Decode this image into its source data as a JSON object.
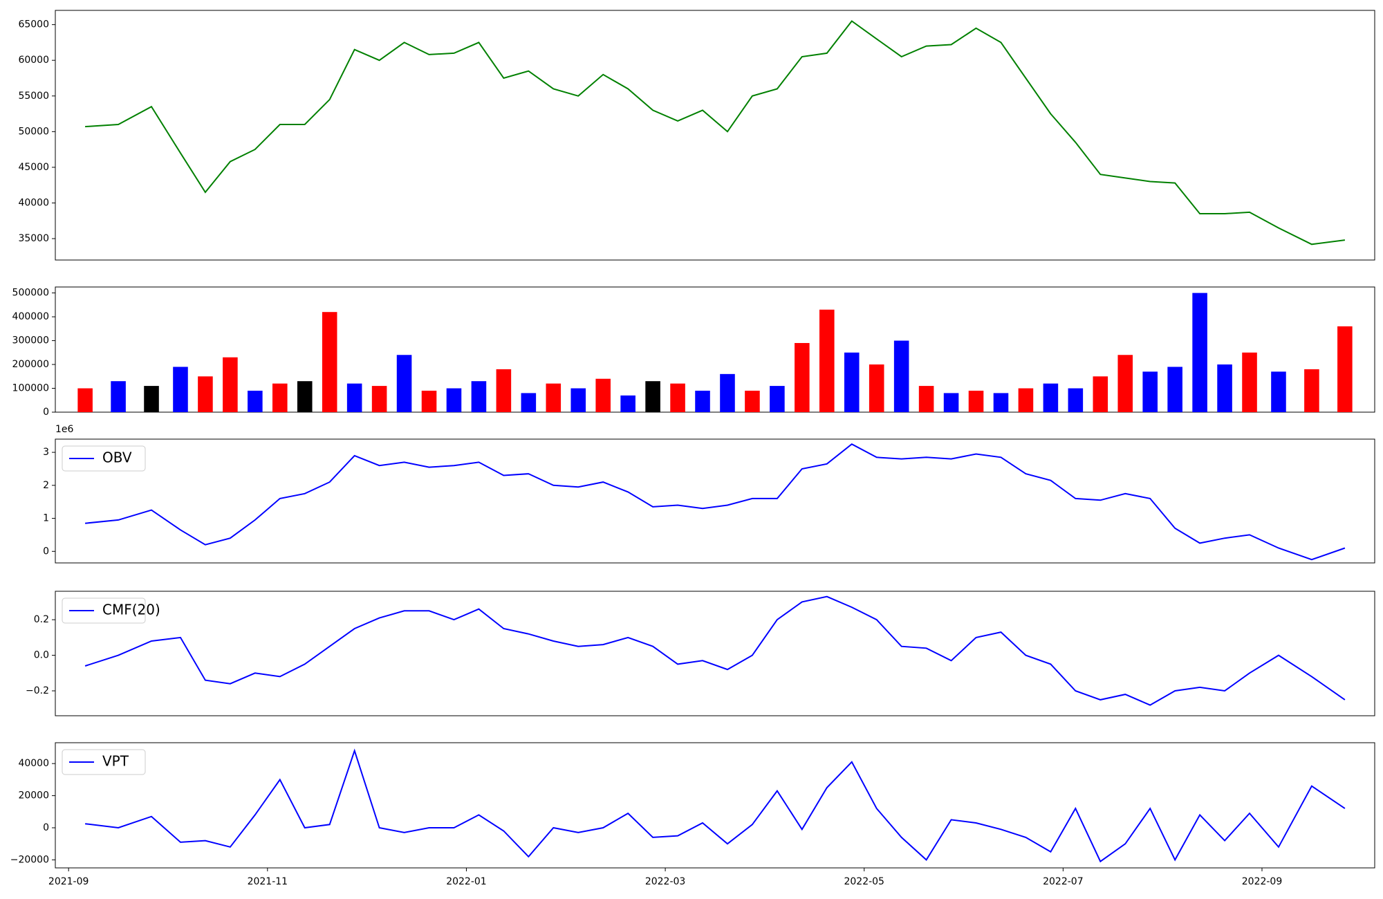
{
  "chart_data": [
    {
      "type": "line",
      "color": "#008000",
      "x": [
        "2021-09",
        "2021-09",
        "2021-09",
        "2021-10",
        "2021-10",
        "2021-10",
        "2021-10",
        "2021-11",
        "2021-11",
        "2021-11",
        "2021-11",
        "2021-12",
        "2021-12",
        "2021-12",
        "2021-12",
        "2022-01",
        "2022-01",
        "2022-01",
        "2022-01",
        "2022-02",
        "2022-02",
        "2022-02",
        "2022-02",
        "2022-03",
        "2022-03",
        "2022-03",
        "2022-03",
        "2022-04",
        "2022-04",
        "2022-04",
        "2022-04",
        "2022-05",
        "2022-05",
        "2022-05",
        "2022-05",
        "2022-06",
        "2022-06",
        "2022-06",
        "2022-06",
        "2022-07",
        "2022-07",
        "2022-07",
        "2022-07",
        "2022-08",
        "2022-08",
        "2022-08",
        "2022-08",
        "2022-09",
        "2022-09",
        "2022-09"
      ],
      "values": [
        50700,
        51000,
        53500,
        47000,
        41500,
        45800,
        47500,
        51000,
        51000,
        54500,
        61500,
        60000,
        62500,
        60800,
        61000,
        62500,
        57500,
        58500,
        56000,
        55000,
        58000,
        56000,
        53000,
        51500,
        53000,
        50000,
        55000,
        56000,
        60500,
        61000,
        65500,
        63000,
        60500,
        62000,
        62200,
        64500,
        62500,
        57500,
        52500,
        48500,
        44000,
        43500,
        43000,
        42800,
        38500,
        38500,
        38700,
        36500,
        34200,
        34800
      ],
      "ylim": [
        32000,
        67000
      ],
      "yticks": [
        35000,
        40000,
        45000,
        50000,
        55000,
        60000,
        65000
      ]
    },
    {
      "type": "bar",
      "x": [
        "2021-09",
        "2021-09",
        "2021-09",
        "2021-10",
        "2021-10",
        "2021-10",
        "2021-10",
        "2021-11",
        "2021-11",
        "2021-11",
        "2021-11",
        "2021-12",
        "2021-12",
        "2021-12",
        "2021-12",
        "2022-01",
        "2022-01",
        "2022-01",
        "2022-01",
        "2022-02",
        "2022-02",
        "2022-02",
        "2022-02",
        "2022-03",
        "2022-03",
        "2022-03",
        "2022-03",
        "2022-04",
        "2022-04",
        "2022-04",
        "2022-04",
        "2022-05",
        "2022-05",
        "2022-05",
        "2022-05",
        "2022-06",
        "2022-06",
        "2022-06",
        "2022-06",
        "2022-07",
        "2022-07",
        "2022-07",
        "2022-07",
        "2022-08",
        "2022-08",
        "2022-08",
        "2022-08",
        "2022-09",
        "2022-09",
        "2022-09"
      ],
      "values": [
        100000,
        130000,
        110000,
        190000,
        150000,
        230000,
        90000,
        120000,
        130000,
        420000,
        120000,
        110000,
        240000,
        90000,
        100000,
        130000,
        180000,
        80000,
        120000,
        100000,
        140000,
        70000,
        130000,
        120000,
        90000,
        160000,
        90000,
        110000,
        290000,
        430000,
        250000,
        200000,
        300000,
        110000,
        80000,
        90000,
        80000,
        100000,
        120000,
        100000,
        150000,
        240000,
        170000,
        190000,
        500000,
        200000,
        250000,
        170000,
        180000,
        360000
      ],
      "colors": [
        "#ff0000",
        "#0000ff",
        "#000000",
        "#0000ff",
        "#ff0000",
        "#ff0000",
        "#0000ff",
        "#ff0000",
        "#000000",
        "#ff0000",
        "#0000ff",
        "#ff0000",
        "#0000ff",
        "#ff0000",
        "#0000ff",
        "#0000ff",
        "#ff0000",
        "#0000ff",
        "#ff0000",
        "#0000ff",
        "#ff0000",
        "#0000ff",
        "#000000",
        "#ff0000",
        "#0000ff",
        "#0000ff",
        "#ff0000",
        "#0000ff",
        "#ff0000",
        "#ff0000",
        "#0000ff",
        "#ff0000",
        "#0000ff",
        "#ff0000",
        "#0000ff",
        "#ff0000",
        "#0000ff",
        "#ff0000",
        "#0000ff",
        "#0000ff",
        "#ff0000",
        "#ff0000",
        "#0000ff",
        "#0000ff",
        "#0000ff",
        "#0000ff",
        "#ff0000",
        "#0000ff",
        "#ff0000",
        "#ff0000"
      ],
      "ylim": [
        0,
        525000
      ],
      "yticks": [
        0,
        100000,
        200000,
        300000,
        400000,
        500000
      ]
    },
    {
      "type": "line",
      "legend": "upper left",
      "offset_label": "1e6",
      "x": [
        "2021-09",
        "2021-09",
        "2021-09",
        "2021-10",
        "2021-10",
        "2021-10",
        "2021-10",
        "2021-11",
        "2021-11",
        "2021-11",
        "2021-11",
        "2021-12",
        "2021-12",
        "2021-12",
        "2021-12",
        "2022-01",
        "2022-01",
        "2022-01",
        "2022-01",
        "2022-02",
        "2022-02",
        "2022-02",
        "2022-02",
        "2022-03",
        "2022-03",
        "2022-03",
        "2022-03",
        "2022-04",
        "2022-04",
        "2022-04",
        "2022-04",
        "2022-05",
        "2022-05",
        "2022-05",
        "2022-05",
        "2022-06",
        "2022-06",
        "2022-06",
        "2022-06",
        "2022-07",
        "2022-07",
        "2022-07",
        "2022-07",
        "2022-08",
        "2022-08",
        "2022-08",
        "2022-08",
        "2022-09",
        "2022-09",
        "2022-09"
      ],
      "series": [
        {
          "name": "OBV",
          "color": "#0000ff",
          "values": [
            850000,
            950000,
            1250000,
            650000,
            200000,
            400000,
            950000,
            1600000,
            1750000,
            2100000,
            2900000,
            2600000,
            2700000,
            2550000,
            2600000,
            2700000,
            2300000,
            2350000,
            2000000,
            1950000,
            2100000,
            1800000,
            1350000,
            1400000,
            1300000,
            1400000,
            1600000,
            1600000,
            2500000,
            2650000,
            3250000,
            2850000,
            2800000,
            2850000,
            2800000,
            2950000,
            2850000,
            2350000,
            2150000,
            1600000,
            1550000,
            1750000,
            1600000,
            700000,
            250000,
            400000,
            500000,
            100000,
            -250000,
            100000
          ]
        }
      ],
      "ylim": [
        -350000,
        3400000
      ],
      "yticks": [
        {
          "value": 0,
          "label": "0"
        },
        {
          "value": 1000000,
          "label": "1"
        },
        {
          "value": 2000000,
          "label": "2"
        },
        {
          "value": 3000000,
          "label": "3"
        }
      ]
    },
    {
      "type": "line",
      "legend": "upper left",
      "x": [
        "2021-09",
        "2021-09",
        "2021-09",
        "2021-10",
        "2021-10",
        "2021-10",
        "2021-10",
        "2021-11",
        "2021-11",
        "2021-11",
        "2021-11",
        "2021-12",
        "2021-12",
        "2021-12",
        "2021-12",
        "2022-01",
        "2022-01",
        "2022-01",
        "2022-01",
        "2022-02",
        "2022-02",
        "2022-02",
        "2022-02",
        "2022-03",
        "2022-03",
        "2022-03",
        "2022-03",
        "2022-04",
        "2022-04",
        "2022-04",
        "2022-04",
        "2022-05",
        "2022-05",
        "2022-05",
        "2022-05",
        "2022-06",
        "2022-06",
        "2022-06",
        "2022-06",
        "2022-07",
        "2022-07",
        "2022-07",
        "2022-07",
        "2022-08",
        "2022-08",
        "2022-08",
        "2022-08",
        "2022-09",
        "2022-09",
        "2022-09"
      ],
      "series": [
        {
          "name": "CMF(20)",
          "color": "#0000ff",
          "values": [
            -0.06,
            0.0,
            0.08,
            0.1,
            -0.14,
            -0.16,
            -0.1,
            -0.12,
            -0.05,
            0.05,
            0.15,
            0.21,
            0.25,
            0.25,
            0.2,
            0.26,
            0.15,
            0.12,
            0.08,
            0.05,
            0.06,
            0.1,
            0.05,
            -0.05,
            -0.03,
            -0.08,
            0.0,
            0.2,
            0.3,
            0.33,
            0.27,
            0.2,
            0.05,
            0.04,
            -0.03,
            0.1,
            0.13,
            0.0,
            -0.05,
            -0.2,
            -0.25,
            -0.22,
            -0.28,
            -0.2,
            -0.18,
            -0.2,
            -0.1,
            0.0,
            -0.12,
            -0.25
          ]
        }
      ],
      "ylim": [
        -0.34,
        0.36
      ],
      "yticks": [
        {
          "value": -0.2,
          "label": "−0.2"
        },
        {
          "value": 0,
          "label": "0.0"
        },
        0.2
      ]
    },
    {
      "type": "line",
      "legend": "upper left",
      "x": [
        "2021-09",
        "2021-09",
        "2021-09",
        "2021-10",
        "2021-10",
        "2021-10",
        "2021-10",
        "2021-11",
        "2021-11",
        "2021-11",
        "2021-11",
        "2021-12",
        "2021-12",
        "2021-12",
        "2021-12",
        "2022-01",
        "2022-01",
        "2022-01",
        "2022-01",
        "2022-02",
        "2022-02",
        "2022-02",
        "2022-02",
        "2022-03",
        "2022-03",
        "2022-03",
        "2022-03",
        "2022-04",
        "2022-04",
        "2022-04",
        "2022-04",
        "2022-05",
        "2022-05",
        "2022-05",
        "2022-05",
        "2022-06",
        "2022-06",
        "2022-06",
        "2022-06",
        "2022-07",
        "2022-07",
        "2022-07",
        "2022-07",
        "2022-08",
        "2022-08",
        "2022-08",
        "2022-08",
        "2022-09",
        "2022-09",
        "2022-09"
      ],
      "series": [
        {
          "name": "VPT",
          "color": "#0000ff",
          "values": [
            2500,
            0,
            7000,
            -9000,
            -8000,
            -12000,
            8000,
            30000,
            0,
            2000,
            48000,
            0,
            -3000,
            0,
            0,
            8000,
            -2000,
            -18000,
            0,
            -3000,
            0,
            9000,
            -6000,
            -5000,
            3000,
            -10000,
            2000,
            23000,
            -1000,
            25000,
            41000,
            12000,
            -6000,
            -20000,
            5000,
            3000,
            -1000,
            -6000,
            -15000,
            12000,
            -21000,
            -10000,
            12000,
            -20000,
            8000,
            -8000,
            9000,
            -12000,
            26000,
            12000
          ]
        }
      ],
      "ylim": [
        -25000,
        53000
      ],
      "yticks": [
        {
          "value": -20000,
          "label": "−20000"
        },
        0,
        20000,
        40000
      ],
      "xticks": [
        "2021-09",
        "2021-11",
        "2022-01",
        "2022-03",
        "2022-05",
        "2022-07",
        "2022-09"
      ]
    }
  ]
}
